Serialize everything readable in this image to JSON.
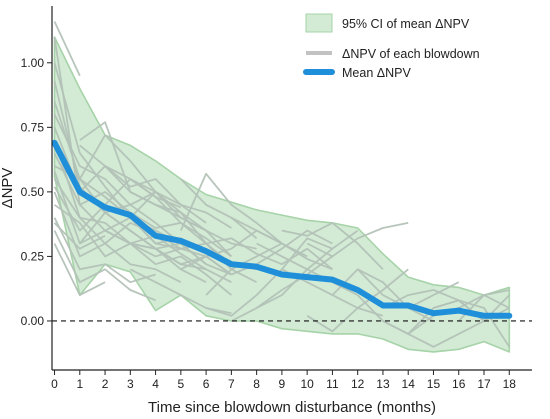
{
  "chart_data": {
    "type": "line",
    "xlabel": "Time since blowdown disturbance (months)",
    "ylabel": "ΔNPV",
    "xlim": [
      -0.1,
      18.9
    ],
    "ylim": [
      -0.19,
      1.22
    ],
    "x_ticks": [
      0,
      1,
      2,
      3,
      4,
      5,
      6,
      7,
      8,
      9,
      10,
      11,
      12,
      13,
      14,
      15,
      16,
      17,
      18
    ],
    "y_ticks": [
      0.0,
      0.25,
      0.5,
      0.75,
      1.0
    ],
    "y_tick_labels": [
      "0.00",
      "0.25",
      "0.50",
      "0.75",
      "1.00"
    ],
    "reference_line": {
      "y": 0,
      "style": "dashed"
    },
    "legend_position": "top-right",
    "grid": false,
    "ci_band": {
      "name": "95% CI of mean ΔNPV",
      "x": [
        0,
        1,
        2,
        3,
        4,
        5,
        6,
        7,
        8,
        9,
        10,
        11,
        12,
        13,
        14,
        15,
        16,
        17,
        18
      ],
      "upper": [
        1.1,
        0.9,
        0.72,
        0.68,
        0.62,
        0.55,
        0.49,
        0.46,
        0.43,
        0.41,
        0.39,
        0.38,
        0.36,
        0.26,
        0.17,
        0.14,
        0.13,
        0.1,
        0.13
      ],
      "lower": [
        0.56,
        0.1,
        0.22,
        0.19,
        0.04,
        0.1,
        0.02,
        0.0,
        0.0,
        -0.03,
        -0.04,
        -0.05,
        -0.05,
        -0.07,
        -0.11,
        -0.12,
        -0.11,
        -0.08,
        -0.12
      ]
    },
    "mean_series": {
      "name": "Mean ΔNPV",
      "x": [
        0,
        1,
        2,
        3,
        4,
        5,
        6,
        7,
        8,
        9,
        10,
        11,
        12,
        13,
        14,
        15,
        16,
        17,
        18
      ],
      "values": [
        0.69,
        0.5,
        0.44,
        0.41,
        0.33,
        0.31,
        0.27,
        0.22,
        0.21,
        0.18,
        0.17,
        0.16,
        0.12,
        0.06,
        0.06,
        0.03,
        0.04,
        0.02,
        0.02
      ]
    },
    "blowdown_series_name": "ΔNPV of each blowdown",
    "blowdowns": [
      {
        "x0": 0,
        "values": [
          1.16,
          0.95
        ]
      },
      {
        "x0": 0,
        "values": [
          1.1,
          0.45,
          0.35,
          0.3,
          0.25
        ]
      },
      {
        "x0": 0,
        "values": [
          1.0,
          0.65,
          0.52,
          0.4,
          0.35,
          0.3
        ]
      },
      {
        "x0": 0,
        "values": [
          0.93,
          0.52,
          0.42,
          0.45,
          0.38,
          0.3,
          0.22
        ]
      },
      {
        "x0": 0,
        "values": [
          0.85,
          0.55,
          0.48,
          0.4,
          0.3,
          0.28,
          0.25,
          0.18
        ]
      },
      {
        "x0": 0,
        "values": [
          0.8,
          0.6,
          0.55,
          0.45,
          0.5,
          0.4,
          0.35,
          0.25
        ]
      },
      {
        "x0": 0,
        "values": [
          0.75,
          0.5,
          0.6,
          0.5,
          0.45,
          0.42,
          0.3,
          0.22,
          0.2
        ]
      },
      {
        "x0": 0,
        "values": [
          0.7,
          0.4,
          0.38,
          0.3,
          0.33,
          0.26,
          0.2,
          0.15
        ]
      },
      {
        "x0": 0,
        "values": [
          0.65,
          0.45,
          0.5,
          0.42,
          0.36,
          0.38,
          0.3
        ]
      },
      {
        "x0": 0,
        "values": [
          0.6,
          0.55,
          0.42,
          0.35,
          0.28,
          0.3,
          0.22,
          0.18
        ]
      },
      {
        "x0": 0,
        "values": [
          0.58,
          0.3,
          0.35,
          0.3,
          0.22,
          0.25,
          0.18,
          0.1
        ]
      },
      {
        "x0": 0,
        "values": [
          0.55,
          0.4,
          0.3,
          0.38,
          0.34,
          0.28
        ]
      },
      {
        "x0": 0,
        "values": [
          0.52,
          0.35,
          0.45,
          0.4,
          0.5,
          0.42,
          0.35
        ]
      },
      {
        "x0": 0,
        "values": [
          0.5,
          0.25,
          0.3,
          0.22,
          0.2,
          0.15
        ]
      },
      {
        "x0": 0,
        "values": [
          0.45,
          0.38,
          0.25,
          0.3,
          0.28,
          0.2,
          0.15
        ]
      },
      {
        "x0": 0,
        "values": [
          0.4,
          0.2,
          0.22,
          0.15,
          0.18
        ]
      },
      {
        "x0": 0,
        "values": [
          0.35,
          0.15,
          0.2,
          0.12,
          0.08
        ]
      },
      {
        "x0": 0,
        "values": [
          0.3,
          0.1,
          0.15
        ]
      },
      {
        "x0": 0,
        "values": [
          0.38,
          0.28,
          0.33
        ]
      },
      {
        "x0": 1,
        "values": [
          0.7,
          0.77,
          0.5,
          0.45
        ]
      },
      {
        "x0": 1,
        "values": [
          0.68,
          0.6,
          0.55,
          0.48,
          0.44
        ]
      },
      {
        "x0": 1,
        "values": [
          0.55,
          0.72,
          0.62,
          0.5
        ]
      },
      {
        "x0": 1,
        "values": [
          0.3,
          0.42,
          0.35,
          0.28,
          0.22,
          0.2
        ]
      },
      {
        "x0": 2,
        "values": [
          0.6,
          0.52,
          0.55,
          0.45,
          0.38
        ]
      },
      {
        "x0": 2,
        "values": [
          0.45,
          0.55,
          0.48,
          0.38,
          0.32,
          0.25
        ]
      },
      {
        "x0": 2,
        "values": [
          0.35,
          0.4,
          0.3,
          0.32,
          0.26
        ]
      },
      {
        "x0": 3,
        "values": [
          0.55,
          0.5,
          0.45,
          0.42,
          0.36
        ]
      },
      {
        "x0": 3,
        "values": [
          0.3,
          0.28,
          0.22,
          0.25,
          0.18
        ]
      },
      {
        "x0": 3,
        "values": [
          0.2,
          0.15,
          0.1,
          0.05,
          0.03
        ]
      },
      {
        "x0": 4,
        "values": [
          0.45,
          0.4,
          0.35,
          0.3,
          0.28
        ]
      },
      {
        "x0": 4,
        "values": [
          0.25,
          0.28,
          0.3,
          0.2,
          0.15
        ]
      },
      {
        "x0": 5,
        "values": [
          0.35,
          0.57,
          0.45,
          0.38,
          0.3
        ]
      },
      {
        "x0": 5,
        "values": [
          0.2,
          0.25,
          0.28,
          0.35,
          0.3
        ]
      },
      {
        "x0": 5,
        "values": [
          0.55,
          0.45,
          0.4,
          0.32
        ]
      },
      {
        "x0": 6,
        "values": [
          0.1,
          0.2,
          0.25,
          0.3,
          0.25
        ]
      },
      {
        "x0": 6,
        "values": [
          0.3,
          0.32,
          0.26,
          0.22,
          0.28,
          0.2
        ]
      },
      {
        "x0": 6,
        "values": [
          0.05,
          0.02,
          0.1,
          0.2,
          0.32,
          0.28
        ]
      },
      {
        "x0": 7,
        "values": [
          0.4,
          0.35,
          0.3,
          0.24,
          0.2
        ]
      },
      {
        "x0": 7,
        "values": [
          0.18,
          0.22,
          0.28,
          0.35,
          0.3
        ]
      },
      {
        "x0": 7,
        "values": [
          0.0,
          0.05,
          0.12,
          0.18,
          0.25
        ]
      },
      {
        "x0": 8,
        "values": [
          0.3,
          0.25,
          0.2,
          0.15,
          0.1
        ]
      },
      {
        "x0": 8,
        "values": [
          0.05,
          0.1,
          0.2,
          0.28,
          0.35
        ]
      },
      {
        "x0": 9,
        "values": [
          0.35,
          0.33,
          0.38,
          0.3,
          0.2
        ]
      },
      {
        "x0": 9,
        "values": [
          0.2,
          0.15,
          0.1,
          0.05,
          0.02
        ]
      },
      {
        "x0": 10,
        "values": [
          0.02,
          -0.04,
          0.05,
          0.12,
          0.2
        ]
      },
      {
        "x0": 10,
        "values": [
          0.3,
          0.25,
          0.32,
          0.36,
          0.38
        ]
      },
      {
        "x0": 11,
        "values": [
          0.1,
          0.2,
          0.15,
          0.05,
          0.0
        ]
      },
      {
        "x0": 12,
        "values": [
          0.1,
          0.0,
          -0.05,
          0.05,
          0.08
        ]
      },
      {
        "x0": 12,
        "values": [
          0.2,
          0.1,
          0.05,
          0.1,
          0.15
        ]
      },
      {
        "x0": 13,
        "values": [
          0.05,
          0.1,
          0.12,
          0.08,
          0.0
        ]
      },
      {
        "x0": 13,
        "values": [
          0.0,
          -0.05,
          0.02,
          0.05,
          0.1,
          0.05
        ]
      },
      {
        "x0": 14,
        "values": [
          -0.05,
          -0.1,
          -0.05,
          0.0,
          0.05
        ]
      },
      {
        "x0": 15,
        "values": [
          0.05,
          0.08,
          0.0,
          0.1
        ]
      },
      {
        "x0": 16,
        "values": [
          0.08,
          0.05,
          -0.1
        ]
      },
      {
        "x0": 16,
        "values": [
          0.0,
          0.1,
          0.12
        ]
      }
    ]
  },
  "colors": {
    "ci_fill": "#d3ebd5",
    "ci_edge": "#a6d3a8",
    "blowdown_line": "#b3c2b7",
    "legend_blowdown_line": "#c2c2c2",
    "mean_line": "#1f8fda",
    "axis": "#222222",
    "zero_line": "#111111"
  }
}
